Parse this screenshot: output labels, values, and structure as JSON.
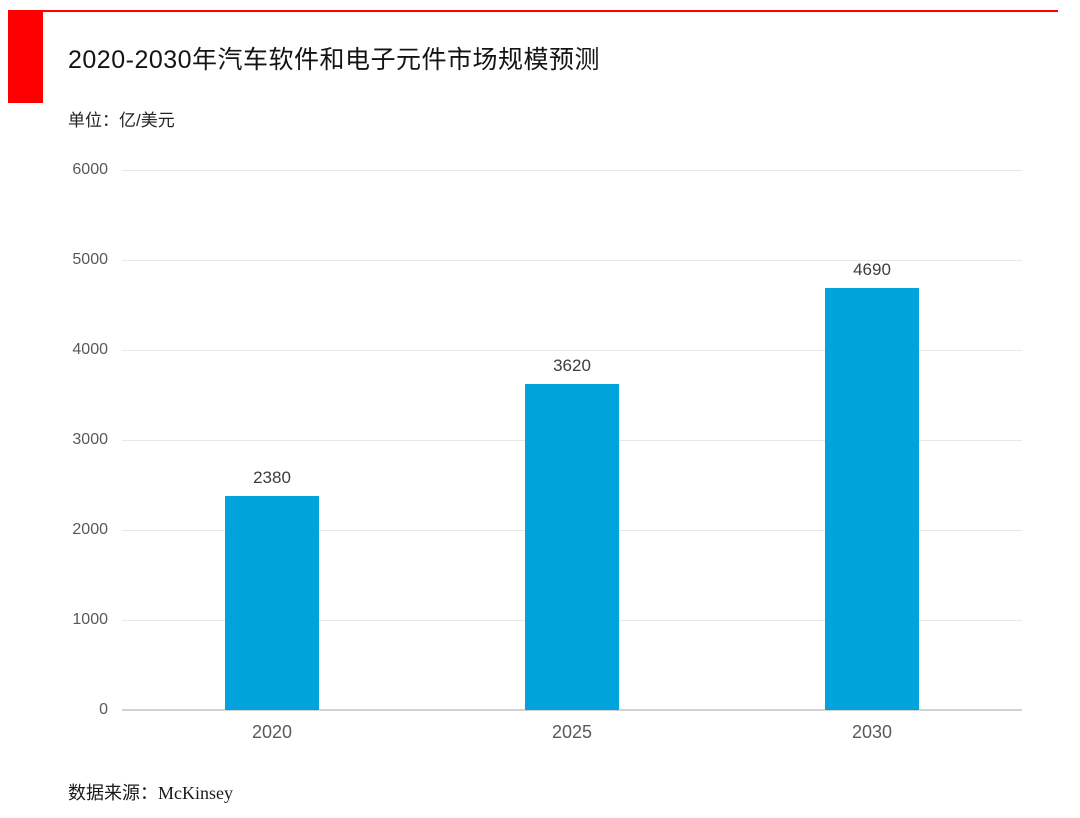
{
  "page": {
    "accent_color": "#ff0000",
    "background_color": "#ffffff"
  },
  "header": {
    "title": "2020-2030年汽车软件和电子元件市场规模预测",
    "unit_label": "单位：亿/美元"
  },
  "chart_data": {
    "type": "bar",
    "categories": [
      "2020",
      "2025",
      "2030"
    ],
    "values": [
      2380,
      3620,
      4690
    ],
    "title": "2020-2030年汽车软件和电子元件市场规模预测",
    "xlabel": "",
    "ylabel": "单位：亿/美元",
    "ylim": [
      0,
      6000
    ],
    "yticks": [
      0,
      1000,
      2000,
      3000,
      4000,
      5000,
      6000
    ],
    "grid": true,
    "legend": "none",
    "bar_color": "#00a3dc",
    "value_labels_shown": true,
    "gridline_color": "#e7e7e7",
    "zero_line_color": "#d2d2d2",
    "tick_label_color": "#595959",
    "value_label_color": "#3d3d3d"
  },
  "footer": {
    "source": "数据来源：McKinsey"
  }
}
